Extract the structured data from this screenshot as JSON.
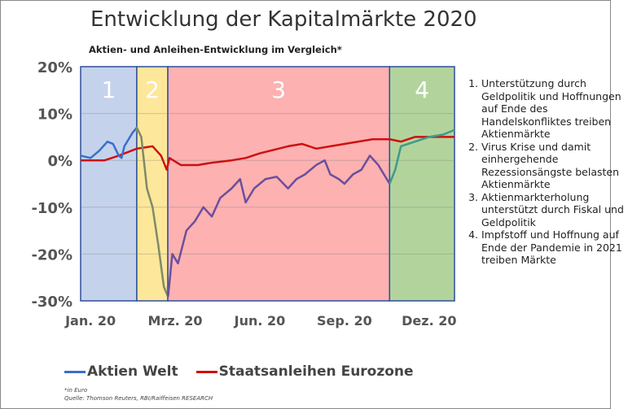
{
  "chart_data": {
    "type": "line",
    "title": "Entwicklung der Kapitalmärkte 2020",
    "subtitle": "Aktien- und Anleihen-Entwicklung im Vergleich*",
    "x_unit": "months since Jan 2020",
    "xlim": [
      -0.35,
      12.9
    ],
    "ylim": [
      -30,
      20
    ],
    "yticks": [
      20,
      10,
      0,
      -10,
      -20,
      -30
    ],
    "ytick_labels": [
      "20%",
      "10%",
      "0%",
      "-10%",
      "-20%",
      "-30%"
    ],
    "xticks": [
      0,
      3,
      6,
      9,
      12
    ],
    "xtick_labels": [
      "Jan. 20",
      "Mrz. 20",
      "Jun. 20",
      "Sep. 20",
      "Dez. 20"
    ],
    "grid": true,
    "regions": [
      {
        "label": "1",
        "from": -0.35,
        "to": 1.64,
        "color": "#c5d2ec",
        "line_color": "#3a6fc8"
      },
      {
        "label": "2",
        "from": 1.64,
        "to": 2.74,
        "color": "#fde79a",
        "line_color": "#7f8a6a"
      },
      {
        "label": "3",
        "from": 2.74,
        "to": 10.6,
        "color": "#fdb1b1",
        "line_color": "#6c4f9b"
      },
      {
        "label": "4",
        "from": 10.6,
        "to": 12.9,
        "color": "#b2d49c",
        "line_color": "#3f9a8a"
      }
    ],
    "series": [
      {
        "name": "Aktien Welt",
        "color": "#3a6fc8",
        "x": [
          -0.35,
          0,
          0.3,
          0.6,
          0.8,
          1.0,
          1.1,
          1.2,
          1.5,
          1.64,
          1.8,
          2.0,
          2.2,
          2.4,
          2.6,
          2.75,
          2.9,
          3.1,
          3.4,
          3.7,
          4.0,
          4.3,
          4.6,
          5.0,
          5.3,
          5.5,
          5.8,
          6.2,
          6.6,
          7.0,
          7.3,
          7.6,
          8.0,
          8.3,
          8.5,
          8.8,
          9.0,
          9.3,
          9.6,
          9.9,
          10.2,
          10.6,
          10.8,
          11.0,
          11.5,
          12.0,
          12.5,
          12.9
        ],
        "y": [
          1,
          0.5,
          2,
          4,
          3.5,
          1,
          0.5,
          3,
          6,
          7,
          5,
          -6,
          -10,
          -18,
          -27,
          -29,
          -20,
          -22,
          -15,
          -13,
          -10,
          -12,
          -8,
          -6,
          -4,
          -9,
          -6,
          -4,
          -3.5,
          -6,
          -4,
          -3,
          -1,
          0,
          -3,
          -4,
          -5,
          -3,
          -2,
          1,
          -1,
          -5,
          -2,
          3,
          4,
          5,
          5.5,
          6.5
        ]
      },
      {
        "name": "Staatsanleihen Eurozone",
        "color": "#cc1111",
        "x": [
          -0.35,
          0,
          0.5,
          1.0,
          1.64,
          2.2,
          2.5,
          2.7,
          2.8,
          3.2,
          3.8,
          4.3,
          5.0,
          5.5,
          6.0,
          7.0,
          7.5,
          8.0,
          9.0,
          10.0,
          10.6,
          11.0,
          11.5,
          12.9
        ],
        "y": [
          0,
          0,
          0,
          1,
          2.5,
          3,
          1,
          -2,
          0.5,
          -1,
          -1,
          -0.5,
          0,
          0.5,
          1.5,
          3,
          3.5,
          2.5,
          3.5,
          4.5,
          4.5,
          4,
          5,
          5
        ]
      }
    ],
    "legend_position": "bottom"
  },
  "notes": [
    "Unterstützung durch Geldpolitik und Hoffnungen auf Ende des Handelskonfliktes treiben Aktienmärkte",
    "Virus Krise und damit einhergehende Rezessionsängste belasten Aktienmärkte",
    "Aktienmarkterholung unterstützt durch Fiskal und Geldpolitik",
    "Impfstoff und Hoffnung auf Ende der Pandemie in 2021 treiben Märkte"
  ],
  "footnote": "*in Euro",
  "source": "Quelle: Thomson Reuters, RBI/Raiffeisen RESEARCH"
}
